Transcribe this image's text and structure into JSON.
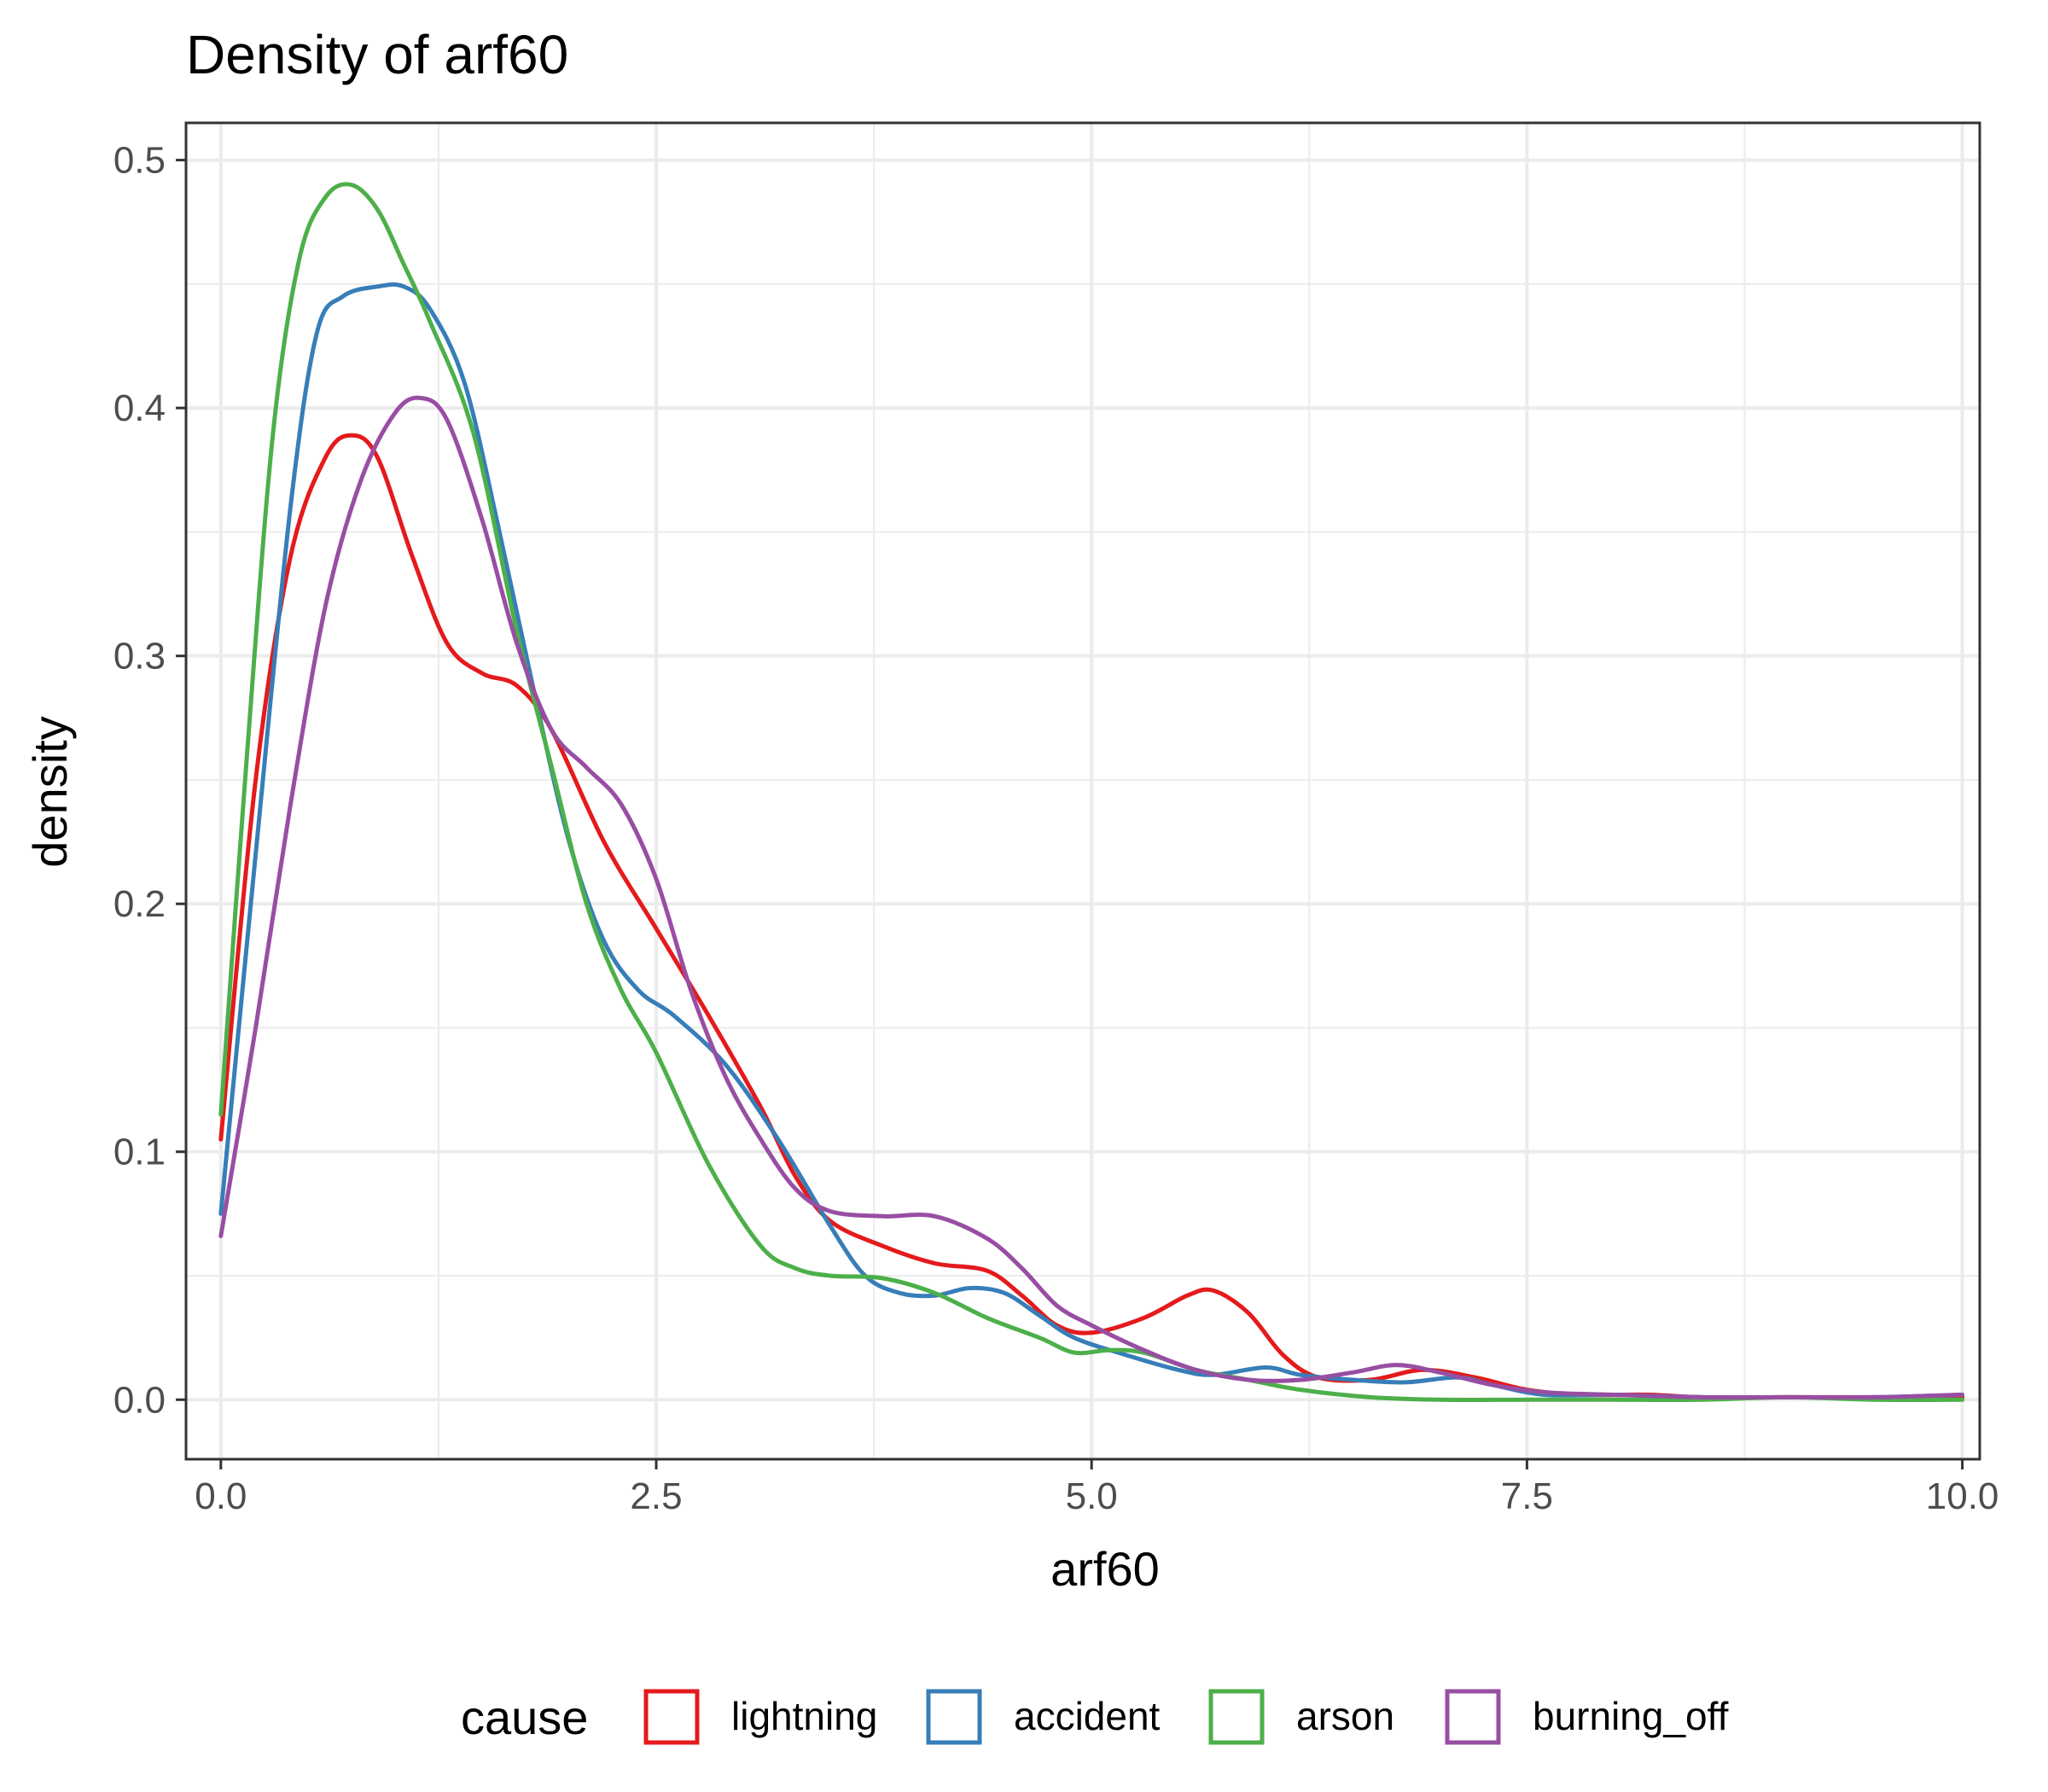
{
  "chart_data": {
    "type": "line",
    "title": "Density of arf60",
    "xlabel": "arf60",
    "ylabel": "density",
    "xlim": [
      -0.2,
      10.1
    ],
    "ylim": [
      -0.024,
      0.515
    ],
    "x_ticks": [
      0.0,
      2.5,
      5.0,
      7.5,
      10.0
    ],
    "x_tick_labels": [
      "0.0",
      "2.5",
      "5.0",
      "7.5",
      "10.0"
    ],
    "y_ticks": [
      0.0,
      0.1,
      0.2,
      0.3,
      0.4,
      0.5
    ],
    "y_tick_labels": [
      "0.0",
      "0.1",
      "0.2",
      "0.3",
      "0.4",
      "0.5"
    ],
    "grid": true,
    "legend": {
      "title": "cause",
      "position": "bottom"
    },
    "series": [
      {
        "name": "lightning",
        "color": "#E41A1C",
        "points": [
          [
            0.0,
            0.105
          ],
          [
            0.2,
            0.25
          ],
          [
            0.4,
            0.34
          ],
          [
            0.6,
            0.38
          ],
          [
            0.75,
            0.389
          ],
          [
            0.9,
            0.38
          ],
          [
            1.1,
            0.34
          ],
          [
            1.3,
            0.305
          ],
          [
            1.5,
            0.293
          ],
          [
            1.7,
            0.288
          ],
          [
            1.9,
            0.27
          ],
          [
            2.2,
            0.225
          ],
          [
            2.5,
            0.19
          ],
          [
            2.8,
            0.155
          ],
          [
            3.1,
            0.118
          ],
          [
            3.3,
            0.09
          ],
          [
            3.5,
            0.072
          ],
          [
            3.8,
            0.062
          ],
          [
            4.1,
            0.055
          ],
          [
            4.4,
            0.052
          ],
          [
            4.6,
            0.042
          ],
          [
            4.8,
            0.03
          ],
          [
            5.0,
            0.027
          ],
          [
            5.3,
            0.033
          ],
          [
            5.55,
            0.042
          ],
          [
            5.7,
            0.044
          ],
          [
            5.9,
            0.035
          ],
          [
            6.1,
            0.018
          ],
          [
            6.3,
            0.009
          ],
          [
            6.6,
            0.008
          ],
          [
            6.9,
            0.012
          ],
          [
            7.2,
            0.009
          ],
          [
            7.5,
            0.004
          ],
          [
            7.8,
            0.002
          ],
          [
            8.2,
            0.002
          ],
          [
            8.5,
            0.001
          ],
          [
            9.0,
            0.001
          ],
          [
            9.5,
            0.001
          ],
          [
            10.0,
            0.001
          ]
        ]
      },
      {
        "name": "accident",
        "color": "#377EB8",
        "points": [
          [
            0.0,
            0.075
          ],
          [
            0.2,
            0.22
          ],
          [
            0.4,
            0.36
          ],
          [
            0.55,
            0.43
          ],
          [
            0.7,
            0.445
          ],
          [
            0.9,
            0.449
          ],
          [
            1.05,
            0.449
          ],
          [
            1.2,
            0.44
          ],
          [
            1.4,
            0.41
          ],
          [
            1.6,
            0.35
          ],
          [
            1.8,
            0.285
          ],
          [
            2.0,
            0.225
          ],
          [
            2.2,
            0.185
          ],
          [
            2.4,
            0.165
          ],
          [
            2.6,
            0.155
          ],
          [
            2.9,
            0.135
          ],
          [
            3.2,
            0.105
          ],
          [
            3.5,
            0.07
          ],
          [
            3.7,
            0.05
          ],
          [
            3.9,
            0.043
          ],
          [
            4.1,
            0.042
          ],
          [
            4.3,
            0.045
          ],
          [
            4.5,
            0.043
          ],
          [
            4.7,
            0.034
          ],
          [
            4.9,
            0.025
          ],
          [
            5.2,
            0.018
          ],
          [
            5.5,
            0.012
          ],
          [
            5.7,
            0.01
          ],
          [
            6.0,
            0.013
          ],
          [
            6.2,
            0.01
          ],
          [
            6.5,
            0.008
          ],
          [
            6.8,
            0.007
          ],
          [
            7.1,
            0.009
          ],
          [
            7.3,
            0.006
          ],
          [
            7.6,
            0.002
          ],
          [
            8.0,
            0.002
          ],
          [
            8.5,
            0.001
          ],
          [
            9.0,
            0.001
          ],
          [
            9.5,
            0.001
          ],
          [
            10.0,
            0.002
          ]
        ]
      },
      {
        "name": "arson",
        "color": "#4DAF4A",
        "points": [
          [
            0.0,
            0.115
          ],
          [
            0.15,
            0.26
          ],
          [
            0.3,
            0.39
          ],
          [
            0.45,
            0.46
          ],
          [
            0.6,
            0.485
          ],
          [
            0.75,
            0.49
          ],
          [
            0.9,
            0.48
          ],
          [
            1.05,
            0.458
          ],
          [
            1.2,
            0.435
          ],
          [
            1.45,
            0.39
          ],
          [
            1.7,
            0.31
          ],
          [
            1.9,
            0.255
          ],
          [
            2.1,
            0.2
          ],
          [
            2.3,
            0.165
          ],
          [
            2.5,
            0.14
          ],
          [
            2.8,
            0.095
          ],
          [
            3.1,
            0.062
          ],
          [
            3.3,
            0.053
          ],
          [
            3.5,
            0.05
          ],
          [
            3.8,
            0.049
          ],
          [
            4.1,
            0.043
          ],
          [
            4.4,
            0.033
          ],
          [
            4.7,
            0.025
          ],
          [
            4.9,
            0.019
          ],
          [
            5.1,
            0.02
          ],
          [
            5.3,
            0.019
          ],
          [
            5.6,
            0.012
          ],
          [
            5.9,
            0.008
          ],
          [
            6.2,
            0.004
          ],
          [
            6.6,
            0.001
          ],
          [
            7.0,
            0.0
          ],
          [
            7.5,
            0.0
          ],
          [
            8.0,
            0.0
          ],
          [
            8.5,
            0.0
          ],
          [
            9.0,
            0.001
          ],
          [
            9.5,
            0.0
          ],
          [
            10.0,
            0.0
          ]
        ]
      },
      {
        "name": "burning_off",
        "color": "#984EA3",
        "points": [
          [
            0.0,
            0.066
          ],
          [
            0.2,
            0.15
          ],
          [
            0.4,
            0.24
          ],
          [
            0.6,
            0.32
          ],
          [
            0.8,
            0.37
          ],
          [
            1.0,
            0.398
          ],
          [
            1.15,
            0.404
          ],
          [
            1.3,
            0.395
          ],
          [
            1.5,
            0.355
          ],
          [
            1.7,
            0.305
          ],
          [
            1.9,
            0.27
          ],
          [
            2.1,
            0.255
          ],
          [
            2.3,
            0.24
          ],
          [
            2.5,
            0.21
          ],
          [
            2.7,
            0.165
          ],
          [
            2.9,
            0.13
          ],
          [
            3.1,
            0.105
          ],
          [
            3.3,
            0.085
          ],
          [
            3.5,
            0.076
          ],
          [
            3.8,
            0.074
          ],
          [
            4.1,
            0.074
          ],
          [
            4.4,
            0.065
          ],
          [
            4.6,
            0.053
          ],
          [
            4.8,
            0.038
          ],
          [
            5.0,
            0.03
          ],
          [
            5.3,
            0.02
          ],
          [
            5.6,
            0.012
          ],
          [
            5.9,
            0.008
          ],
          [
            6.2,
            0.008
          ],
          [
            6.5,
            0.011
          ],
          [
            6.75,
            0.014
          ],
          [
            7.0,
            0.011
          ],
          [
            7.3,
            0.006
          ],
          [
            7.6,
            0.003
          ],
          [
            8.0,
            0.002
          ],
          [
            8.5,
            0.001
          ],
          [
            9.0,
            0.001
          ],
          [
            9.5,
            0.001
          ],
          [
            10.0,
            0.002
          ]
        ]
      }
    ]
  }
}
